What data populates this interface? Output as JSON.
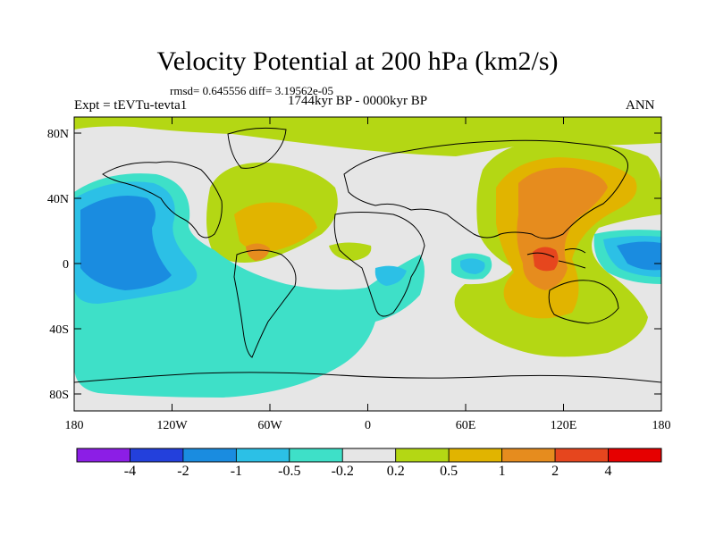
{
  "title": "Velocity Potential at 200 hPa (km2/s)",
  "stats": "rmsd= 0.645556 diff= 3.19562e-05",
  "experiment": "Expt = tEVTu-tevta1",
  "period": "1744kyr BP - 0000kyr BP",
  "season": "ANN",
  "y_axis": {
    "ticks": [
      "80N",
      "40N",
      "0",
      "40S",
      "80S"
    ]
  },
  "x_axis": {
    "ticks": [
      "180",
      "120W",
      "60W",
      "0",
      "60E",
      "120E",
      "180"
    ]
  },
  "colorbar": {
    "labels": [
      "-4",
      "-2",
      "-1",
      "-0.5",
      "-0.2",
      "0.2",
      "0.5",
      "1",
      "2",
      "4"
    ],
    "colors": [
      "#8c1ee6",
      "#2340dc",
      "#1a8ce0",
      "#2cc0e6",
      "#3ee0c8",
      "#e6e6e6",
      "#b4d714",
      "#e1b400",
      "#e68c1e",
      "#e6461e",
      "#e60000"
    ]
  },
  "field_colors": {
    "neutral": "#e6e6e6",
    "neg_weak": "#3ee0c8",
    "neg_mid": "#2cc0e6",
    "neg_strong": "#1a8ce0",
    "pos_weak": "#b4d714",
    "pos_mid": "#e1b400",
    "pos_strong": "#e68c1e",
    "pos_max": "#e6461e"
  }
}
